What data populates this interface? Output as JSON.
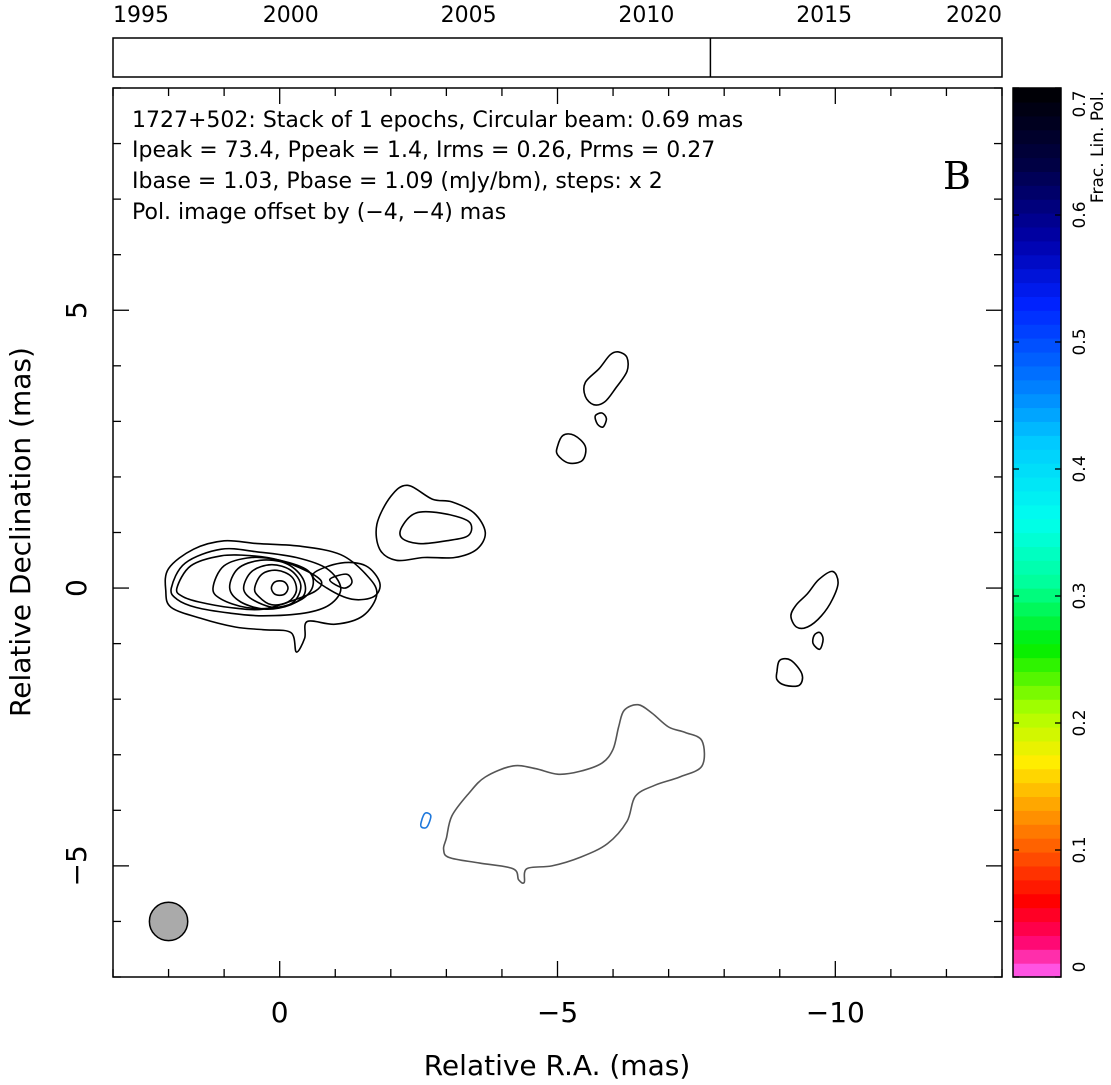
{
  "chart_data": {
    "type": "contour",
    "timeline": {
      "ticks": [
        "1995",
        "2000",
        "2005",
        "2010",
        "2015",
        "2020"
      ],
      "epoch_year": 2011.8,
      "range": [
        1995,
        2020
      ]
    },
    "info": {
      "line1": "1727+502: Stack of 1 epochs, Circular beam: 0.69 mas",
      "line2": "Ipeak = 73.4, Ppeak = 1.4, Irms = 0.26, Prms = 0.27",
      "line3": "Ibase = 1.03, Pbase = 1.09 (mJy/bm), steps: x 2",
      "line4": "Pol. image offset by (−4, −4) mas",
      "line4_color": "#1e8ce6",
      "panel_letter": "B"
    },
    "xlabel": "Relative R.A. (mas)",
    "ylabel": "Relative Declination (mas)",
    "xlim": [
      3,
      -13
    ],
    "ylim": [
      -7,
      9
    ],
    "x_ticks": [
      {
        "v": 0,
        "label": "0"
      },
      {
        "v": -5,
        "label": "−5"
      },
      {
        "v": -10,
        "label": "−10"
      }
    ],
    "y_ticks": [
      {
        "v": 5,
        "label": "5"
      },
      {
        "v": 0,
        "label": "0"
      },
      {
        "v": -5,
        "label": "−5"
      }
    ],
    "beam": {
      "x": 2.0,
      "y": -6.0,
      "radius_mas": 0.345,
      "color": "#aaaaaa"
    },
    "colorbar": {
      "label": "Frac. Lin. Pol.",
      "range": [
        0,
        0.7
      ],
      "ticks": [
        {
          "v": 0,
          "label": "0"
        },
        {
          "v": 0.1,
          "label": "0.1"
        },
        {
          "v": 0.2,
          "label": "0.2"
        },
        {
          "v": 0.3,
          "label": "0.3"
        },
        {
          "v": 0.4,
          "label": "0.4"
        },
        {
          "v": 0.5,
          "label": "0.5"
        },
        {
          "v": 0.6,
          "label": "0.6"
        },
        {
          "v": 0.7,
          "label": "0.7"
        }
      ],
      "stops": [
        {
          "v": 0.0,
          "color": "#ff66ff"
        },
        {
          "v": 0.03,
          "color": "#ff0066"
        },
        {
          "v": 0.06,
          "color": "#ff0000"
        },
        {
          "v": 0.1,
          "color": "#ff5a00"
        },
        {
          "v": 0.13,
          "color": "#ff9900"
        },
        {
          "v": 0.17,
          "color": "#ffee00"
        },
        {
          "v": 0.21,
          "color": "#aaff00"
        },
        {
          "v": 0.26,
          "color": "#00ee00"
        },
        {
          "v": 0.31,
          "color": "#00ff99"
        },
        {
          "v": 0.36,
          "color": "#00ffee"
        },
        {
          "v": 0.42,
          "color": "#00ccff"
        },
        {
          "v": 0.47,
          "color": "#0077ff"
        },
        {
          "v": 0.53,
          "color": "#0022ff"
        },
        {
          "v": 0.58,
          "color": "#0000aa"
        },
        {
          "v": 0.64,
          "color": "#000044"
        },
        {
          "v": 0.7,
          "color": "#000000"
        }
      ]
    },
    "total_intensity_contours": [
      {
        "color": "#000000",
        "points": [
          [
            2.05,
            -0.05
          ],
          [
            2.0,
            0.35
          ],
          [
            1.55,
            0.7
          ],
          [
            1.0,
            0.85
          ],
          [
            0.4,
            0.8
          ],
          [
            -0.4,
            0.75
          ],
          [
            -1.1,
            0.6
          ],
          [
            -1.55,
            0.25
          ],
          [
            -1.75,
            -0.1
          ],
          [
            -1.5,
            -0.5
          ],
          [
            -1.0,
            -0.65
          ],
          [
            -0.5,
            -0.6
          ],
          [
            -0.45,
            -0.9
          ],
          [
            -0.3,
            -1.15
          ],
          [
            -0.2,
            -0.8
          ],
          [
            0.3,
            -0.75
          ],
          [
            0.8,
            -0.7
          ],
          [
            1.4,
            -0.55
          ],
          [
            1.95,
            -0.35
          ]
        ]
      },
      {
        "color": "#000000",
        "points": [
          [
            1.95,
            0.0
          ],
          [
            1.7,
            0.45
          ],
          [
            1.05,
            0.7
          ],
          [
            0.4,
            0.65
          ],
          [
            -0.3,
            0.55
          ],
          [
            -0.85,
            0.35
          ],
          [
            -1.1,
            0.0
          ],
          [
            -0.9,
            -0.3
          ],
          [
            -0.45,
            -0.45
          ],
          [
            0.3,
            -0.5
          ],
          [
            0.9,
            -0.45
          ],
          [
            1.5,
            -0.35
          ],
          [
            1.85,
            -0.2
          ]
        ]
      },
      {
        "color": "#000000",
        "points": [
          [
            1.85,
            0.0
          ],
          [
            1.6,
            0.4
          ],
          [
            1.05,
            0.58
          ],
          [
            0.5,
            0.58
          ],
          [
            0.0,
            0.5
          ],
          [
            -0.5,
            0.3
          ],
          [
            -0.75,
            0.12
          ],
          [
            -0.65,
            -0.05
          ],
          [
            -0.3,
            -0.2
          ],
          [
            0.3,
            -0.38
          ],
          [
            0.9,
            -0.35
          ],
          [
            1.45,
            -0.25
          ],
          [
            1.75,
            -0.15
          ]
        ]
      },
      {
        "color": "#000000",
        "points": [
          [
            1.2,
            0.0
          ],
          [
            1.0,
            0.4
          ],
          [
            0.5,
            0.55
          ],
          [
            0.0,
            0.5
          ],
          [
            -0.5,
            0.32
          ],
          [
            -0.6,
            0.05
          ],
          [
            -0.4,
            -0.2
          ],
          [
            0.05,
            -0.35
          ],
          [
            0.6,
            -0.35
          ],
          [
            1.05,
            -0.2
          ]
        ]
      },
      {
        "color": "#000000",
        "points": [
          [
            0.9,
            0.0
          ],
          [
            0.75,
            0.35
          ],
          [
            0.35,
            0.5
          ],
          [
            -0.1,
            0.45
          ],
          [
            -0.4,
            0.2
          ],
          [
            -0.45,
            -0.1
          ],
          [
            -0.2,
            -0.3
          ],
          [
            0.25,
            -0.38
          ],
          [
            0.7,
            -0.25
          ]
        ]
      },
      {
        "color": "#000000",
        "points": [
          [
            0.65,
            0.0
          ],
          [
            0.5,
            0.3
          ],
          [
            0.15,
            0.42
          ],
          [
            -0.2,
            0.32
          ],
          [
            -0.38,
            0.05
          ],
          [
            -0.25,
            -0.25
          ],
          [
            0.1,
            -0.35
          ],
          [
            0.5,
            -0.2
          ]
        ]
      },
      {
        "color": "#000000",
        "points": [
          [
            0.45,
            0.0
          ],
          [
            0.32,
            0.25
          ],
          [
            0.05,
            0.32
          ],
          [
            -0.22,
            0.2
          ],
          [
            -0.3,
            -0.05
          ],
          [
            -0.15,
            -0.25
          ],
          [
            0.15,
            -0.3
          ],
          [
            0.38,
            -0.15
          ]
        ]
      },
      {
        "color": "#000000",
        "points": [
          [
            0.15,
            0.0
          ],
          [
            0.1,
            0.1
          ],
          [
            0.0,
            0.13
          ],
          [
            -0.1,
            0.1
          ],
          [
            -0.15,
            0.0
          ],
          [
            -0.1,
            -0.1
          ],
          [
            0.0,
            -0.13
          ],
          [
            0.1,
            -0.1
          ]
        ]
      },
      {
        "color": "#000000",
        "points": [
          [
            -0.6,
            0.25
          ],
          [
            -1.1,
            0.45
          ],
          [
            -1.55,
            0.4
          ],
          [
            -1.8,
            0.1
          ],
          [
            -1.7,
            -0.15
          ],
          [
            -1.3,
            -0.2
          ],
          [
            -0.85,
            0.0
          ]
        ]
      },
      {
        "color": "#000000",
        "points": [
          [
            -0.9,
            0.15
          ],
          [
            -1.2,
            0.25
          ],
          [
            -1.3,
            0.1
          ],
          [
            -1.15,
            0.0
          ]
        ]
      },
      {
        "color": "#000000",
        "points": [
          [
            -1.8,
            0.7
          ],
          [
            -1.75,
            1.15
          ],
          [
            -2.0,
            1.65
          ],
          [
            -2.3,
            1.85
          ],
          [
            -2.75,
            1.6
          ],
          [
            -3.1,
            1.55
          ],
          [
            -3.5,
            1.35
          ],
          [
            -3.7,
            1.0
          ],
          [
            -3.55,
            0.7
          ],
          [
            -3.15,
            0.55
          ],
          [
            -2.6,
            0.55
          ],
          [
            -2.1,
            0.5
          ]
        ]
      },
      {
        "color": "#000000",
        "points": [
          [
            -2.2,
            1.1
          ],
          [
            -2.45,
            1.35
          ],
          [
            -2.9,
            1.35
          ],
          [
            -3.4,
            1.2
          ],
          [
            -3.4,
            0.95
          ],
          [
            -3.0,
            0.85
          ],
          [
            -2.5,
            0.8
          ],
          [
            -2.2,
            0.9
          ]
        ]
      },
      {
        "color": "#000000",
        "points": [
          [
            -5.5,
            3.7
          ],
          [
            -5.75,
            3.95
          ],
          [
            -5.95,
            4.2
          ],
          [
            -6.1,
            4.25
          ],
          [
            -6.25,
            4.15
          ],
          [
            -6.25,
            3.9
          ],
          [
            -6.05,
            3.6
          ],
          [
            -5.85,
            3.35
          ],
          [
            -5.65,
            3.3
          ],
          [
            -5.5,
            3.45
          ]
        ]
      },
      {
        "color": "#000000",
        "points": [
          [
            -5.72,
            2.95
          ],
          [
            -5.68,
            3.1
          ],
          [
            -5.8,
            3.15
          ],
          [
            -5.88,
            3.05
          ],
          [
            -5.82,
            2.9
          ]
        ]
      },
      {
        "color": "#000000",
        "points": [
          [
            -5.0,
            2.55
          ],
          [
            -5.1,
            2.75
          ],
          [
            -5.3,
            2.75
          ],
          [
            -5.5,
            2.55
          ],
          [
            -5.45,
            2.3
          ],
          [
            -5.2,
            2.25
          ],
          [
            -5.0,
            2.4
          ]
        ]
      },
      {
        "color": "#000000",
        "points": [
          [
            -9.2,
            -0.5
          ],
          [
            -9.3,
            -0.3
          ],
          [
            -9.5,
            -0.1
          ],
          [
            -9.7,
            0.15
          ],
          [
            -9.95,
            0.3
          ],
          [
            -10.05,
            0.1
          ],
          [
            -9.95,
            -0.2
          ],
          [
            -9.75,
            -0.5
          ],
          [
            -9.5,
            -0.7
          ],
          [
            -9.3,
            -0.7
          ]
        ]
      },
      {
        "color": "#000000",
        "points": [
          [
            -9.6,
            -1.0
          ],
          [
            -9.62,
            -0.85
          ],
          [
            -9.72,
            -0.8
          ],
          [
            -9.78,
            -0.92
          ],
          [
            -9.72,
            -1.1
          ]
        ]
      },
      {
        "color": "#000000",
        "points": [
          [
            -8.95,
            -1.5
          ],
          [
            -9.0,
            -1.3
          ],
          [
            -9.2,
            -1.3
          ],
          [
            -9.4,
            -1.55
          ],
          [
            -9.35,
            -1.75
          ],
          [
            -9.1,
            -1.75
          ],
          [
            -8.95,
            -1.65
          ]
        ]
      }
    ],
    "polarized_contours": [
      {
        "color": "#555555",
        "points": [
          [
            -3.0,
            -4.5
          ],
          [
            -3.1,
            -4.1
          ],
          [
            -3.4,
            -3.7
          ],
          [
            -3.7,
            -3.4
          ],
          [
            -4.2,
            -3.2
          ],
          [
            -4.6,
            -3.25
          ],
          [
            -5.0,
            -3.35
          ],
          [
            -5.4,
            -3.3
          ],
          [
            -5.8,
            -3.15
          ],
          [
            -6.0,
            -2.9
          ],
          [
            -6.1,
            -2.5
          ],
          [
            -6.2,
            -2.2
          ],
          [
            -6.45,
            -2.1
          ],
          [
            -6.7,
            -2.25
          ],
          [
            -7.0,
            -2.5
          ],
          [
            -7.3,
            -2.6
          ],
          [
            -7.6,
            -2.75
          ],
          [
            -7.6,
            -3.2
          ],
          [
            -7.2,
            -3.4
          ],
          [
            -6.75,
            -3.55
          ],
          [
            -6.4,
            -3.75
          ],
          [
            -6.25,
            -4.2
          ],
          [
            -5.9,
            -4.6
          ],
          [
            -5.4,
            -4.85
          ],
          [
            -4.9,
            -5.0
          ],
          [
            -4.45,
            -5.05
          ],
          [
            -4.4,
            -5.3
          ],
          [
            -4.3,
            -5.25
          ],
          [
            -4.2,
            -5.05
          ],
          [
            -3.6,
            -4.95
          ],
          [
            -3.05,
            -4.85
          ],
          [
            -2.95,
            -4.7
          ]
        ]
      },
      {
        "color": "#1e78dc",
        "points": [
          [
            -2.55,
            -4.2
          ],
          [
            -2.62,
            -4.05
          ],
          [
            -2.72,
            -4.1
          ],
          [
            -2.65,
            -4.3
          ],
          [
            -2.55,
            -4.3
          ]
        ]
      }
    ]
  }
}
